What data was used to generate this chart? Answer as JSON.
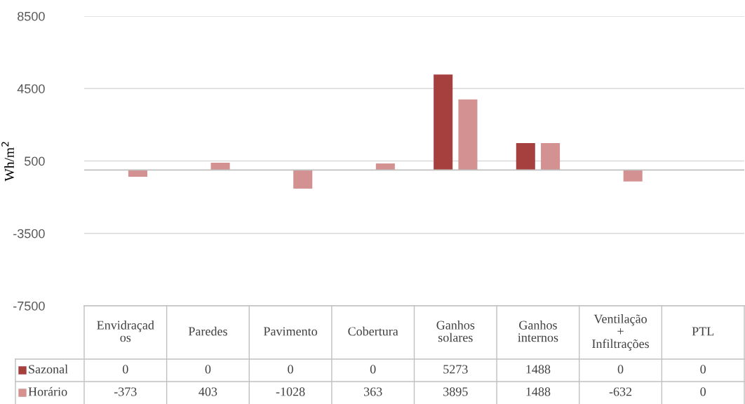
{
  "chart_data": {
    "type": "bar",
    "ylabel": "Wh/m$^{2}$",
    "categories": [
      "Envidraçad\nos",
      "Paredes",
      "Pavimento",
      "Cobertura",
      "Ganhos\nsolares",
      "Ganhos\ninternos",
      "Ventilação\n+\nInfiltrações",
      "PTL"
    ],
    "series": [
      {
        "name": "Sazonal",
        "color": "#a5403f",
        "values": [
          0,
          0,
          0,
          0,
          5273,
          1488,
          0,
          0
        ]
      },
      {
        "name": "Horário",
        "color": "#d49191",
        "values": [
          -373,
          403,
          -1028,
          363,
          3895,
          1488,
          -632,
          0
        ]
      }
    ],
    "ylim": [
      -7500,
      8500
    ],
    "yticks": [
      -7500,
      -3500,
      500,
      4500,
      8500
    ],
    "grid": "y",
    "legend": "bottom",
    "data_labels": true
  }
}
